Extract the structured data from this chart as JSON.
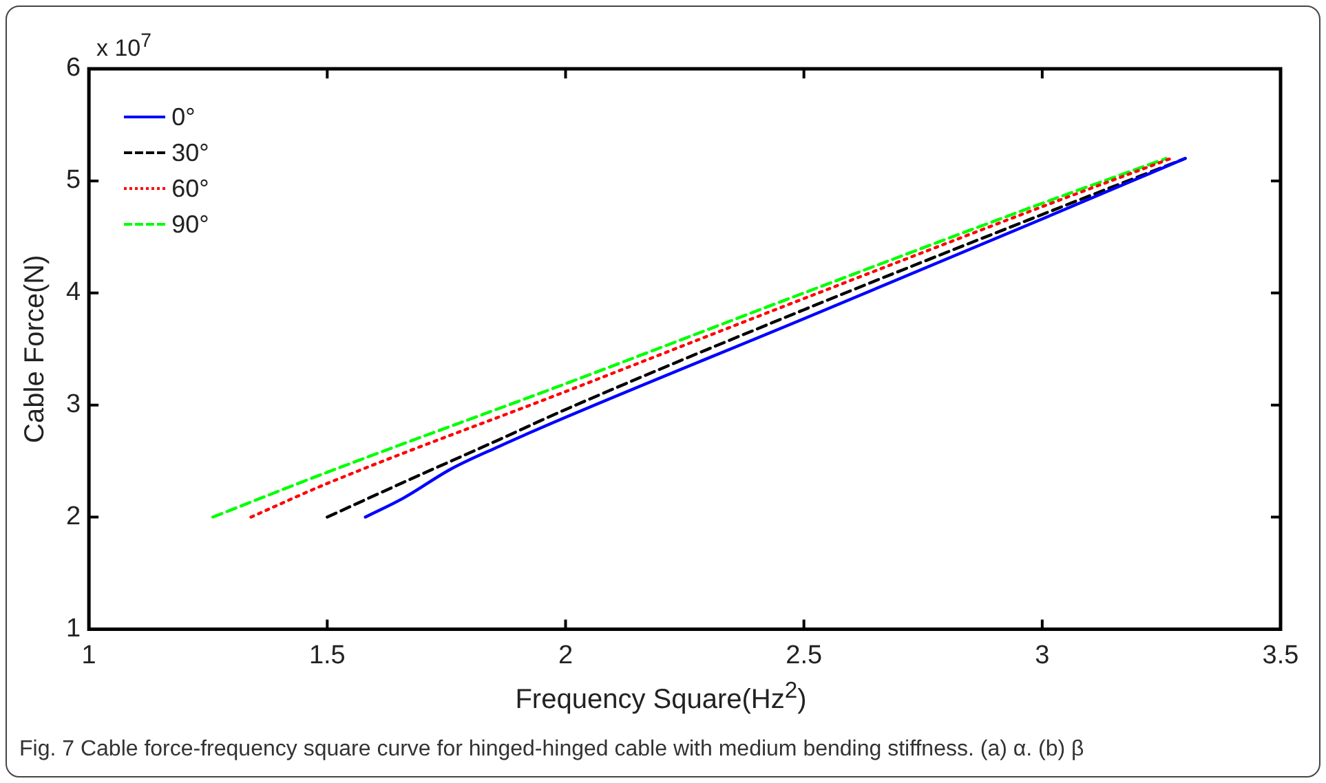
{
  "chart_data": {
    "type": "line",
    "xlabel": "Frequency Square(Hz$^{2}$)",
    "ylabel": "Cable Force(N)",
    "xlim": [
      1,
      3.5
    ],
    "xticks": [
      1,
      1.5,
      2,
      2.5,
      3,
      3.5
    ],
    "ylim": [
      1,
      6
    ],
    "yticks": [
      1,
      2,
      3,
      4,
      5,
      6
    ],
    "grid": false,
    "legend": "top left",
    "marker": "none",
    "annotations": [
      "x 10$^{7}$",
      "Fig. 7 Cable force-frequency square curve for hinged-hinged cable with medium bending stiffness. (a) α. (b) β"
    ],
    "series": [
      {
        "name": "0°",
        "color": "#0000ff",
        "line_style": "solid",
        "x": [
          1.58,
          1.66,
          1.76,
          1.86,
          2.0,
          2.5,
          3.0,
          3.3
        ],
        "values": [
          2.0,
          2.17,
          2.43,
          2.63,
          2.89,
          3.77,
          4.66,
          5.2
        ]
      },
      {
        "name": "30°",
        "color": "#000000",
        "line_style": "dashed",
        "x": [
          1.5,
          1.66,
          1.86,
          2.0,
          2.5,
          3.0,
          3.3
        ],
        "values": [
          2.0,
          2.31,
          2.69,
          2.96,
          3.85,
          4.7,
          5.2
        ]
      },
      {
        "name": "60°",
        "color": "#ff0000",
        "line_style": "dotted",
        "x": [
          1.34,
          1.5,
          2.0,
          2.5,
          3.0,
          3.27
        ],
        "values": [
          2.0,
          2.3,
          3.12,
          3.95,
          4.77,
          5.2
        ]
      },
      {
        "name": "90°",
        "color": "#00ff00",
        "line_style": "dashed",
        "x": [
          1.26,
          1.5,
          2.0,
          2.5,
          3.0,
          3.26
        ],
        "values": [
          2.0,
          2.4,
          3.19,
          4.0,
          4.8,
          5.2
        ]
      }
    ]
  }
}
